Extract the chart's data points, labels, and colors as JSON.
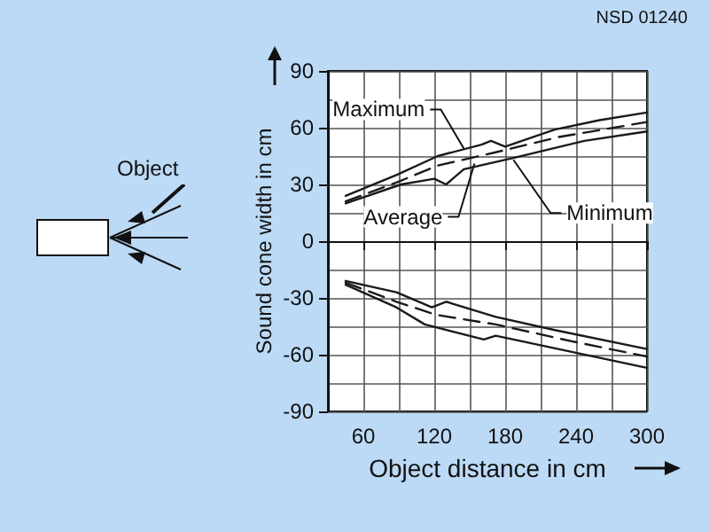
{
  "chart_data": {
    "type": "line",
    "xlabel": "Object distance in cm",
    "ylabel": "Sound cone width in cm",
    "xlim": [
      30,
      300
    ],
    "xticks": [
      60,
      120,
      180,
      240,
      300
    ],
    "ylim": [
      -90,
      90
    ],
    "yticks": [
      -90,
      -60,
      -30,
      0,
      30,
      60,
      90
    ],
    "grid": true,
    "marker": "none",
    "series": [
      {
        "color": "#1a1a1a",
        "line_style": "solid",
        "x": [
          45,
          88,
          123,
          160,
          168,
          180,
          222,
          260,
          300
        ],
        "values": [
          24,
          35,
          45,
          51,
          53,
          50,
          59,
          64,
          68
        ]
      },
      {
        "color": "#1a1a1a",
        "line_style": "dashed",
        "x": [
          45,
          88,
          123,
          172,
          225,
          300
        ],
        "values": [
          21,
          31,
          40,
          47,
          55,
          63
        ]
      },
      {
        "color": "#1a1a1a",
        "line_style": "solid",
        "x": [
          45,
          92,
          120,
          130,
          145,
          187,
          247,
          300
        ],
        "values": [
          20,
          30,
          33,
          30,
          38,
          44,
          53,
          58
        ]
      },
      {
        "color": "#1a1a1a",
        "line_style": "solid",
        "x": [
          45,
          88,
          118,
          130,
          172,
          222,
          300
        ],
        "values": [
          -21,
          -27,
          -35,
          -32,
          -40,
          -47,
          -57
        ]
      },
      {
        "color": "#1a1a1a",
        "line_style": "dashed",
        "x": [
          45,
          88,
          122,
          172,
          237,
          300
        ],
        "values": [
          -22,
          -32,
          -39,
          -44,
          -53,
          -61
        ]
      },
      {
        "color": "#1a1a1a",
        "line_style": "solid",
        "x": [
          45,
          88,
          112,
          162,
          172,
          300
        ],
        "values": [
          -23,
          -35,
          -44,
          -52,
          -50,
          -67
        ]
      }
    ],
    "annotations": [
      {
        "text": "Maximum",
        "x": 145,
        "y": 49
      },
      {
        "text": "Average",
        "x": 154,
        "y": 41
      },
      {
        "text": "Minimum",
        "x": 187,
        "y": 43
      },
      "NSD 01240",
      "Object"
    ]
  }
}
